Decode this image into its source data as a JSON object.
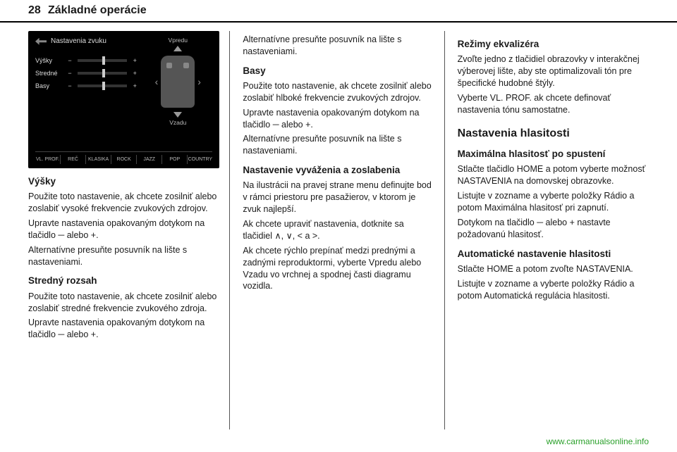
{
  "page_number": "28",
  "chapter": "Základné operácie",
  "screenshot": {
    "title": "Nastavenia zvuku",
    "top_label": "Vpredu",
    "bottom_label": "Vzadu",
    "sliders": [
      {
        "label": "Výšky",
        "handle_pct": 50
      },
      {
        "label": "Stredné",
        "handle_pct": 50
      },
      {
        "label": "Basy",
        "handle_pct": 50
      }
    ],
    "tabs": [
      "VL. PROF.",
      "REČ",
      "KLASIKA",
      "ROCK",
      "JAZZ",
      "POP",
      "COUNTRY"
    ]
  },
  "col1": {
    "h_vysky": "Výšky",
    "p1": "Použite toto nastavenie, ak chcete zosilniť alebo zoslabiť vysoké frekvencie zvukových zdrojov.",
    "p2": "Upravte nastavenia opakovaným dotykom na tlačidlo ─ alebo +.",
    "p3": "Alternatívne presuňte posuvník na lište s nastaveniami.",
    "h_stred": "Stredný rozsah",
    "p4": "Použite toto nastavenie, ak chcete zosilniť alebo zoslabiť stredné frekvencie zvukového zdroja.",
    "p5": "Upravte nastavenia opakovaným dotykom na tlačidlo ─ alebo +."
  },
  "col2": {
    "p1": "Alternatívne presuňte posuvník na lište s nastaveniami.",
    "h_basy": "Basy",
    "p2": "Použite toto nastavenie, ak chcete zosilniť alebo zoslabiť hlboké frekvencie zvukových zdrojov.",
    "p3": "Upravte nastavenia opakovaným dotykom na tlačidlo ─ alebo +.",
    "p4": "Alternatívne presuňte posuvník na lište s nastaveniami.",
    "h_vyv": "Nastavenie vyváženia a zoslabenia",
    "p5": "Na ilustrácii na pravej strane menu definujte bod v rámci priestoru pre pasažierov, v ktorom je zvuk najlepší.",
    "p6": "Ak chcete upraviť nastavenia, dotknite sa tlačidiel ∧, ∨, < a >.",
    "p7": "Ak chcete rýchlo prepínať medzi prednými a zadnými reproduktormi, vyberte Vpredu alebo Vzadu vo vrchnej a spodnej časti diagramu vozidla."
  },
  "col3": {
    "h_rezimy": "Režimy ekvalizéra",
    "p1": "Zvoľte jedno z tlačidiel obrazovky v interakčnej výberovej lište, aby ste optimalizovali tón pre špecifické hudobné štýly.",
    "p2": "Vyberte VL. PROF. ak chcete definovať nastavenia tónu samostatne.",
    "h_hlas": "Nastavenia hlasitosti",
    "h_max": "Maximálna hlasitosť po spustení",
    "p3": "Stlačte tlačidlo HOME a potom vyberte možnosť NASTAVENIA na domovskej obrazovke.",
    "p4": "Listujte v zozname a vyberte položky Rádio a potom Maximálna hlasitosť pri zapnutí.",
    "p5": "Dotykom na tlačidlo ─ alebo + nastavte požadovanú hlasitosť.",
    "h_auto": "Automatické nastavenie hlasitosti",
    "p6": "Stlačte HOME a potom zvoľte NASTAVENIA.",
    "p7": "Listujte v zozname a vyberte položky Rádio a potom Automatická regulácia hlasitosti."
  },
  "footer": "www.carmanualsonline.info"
}
